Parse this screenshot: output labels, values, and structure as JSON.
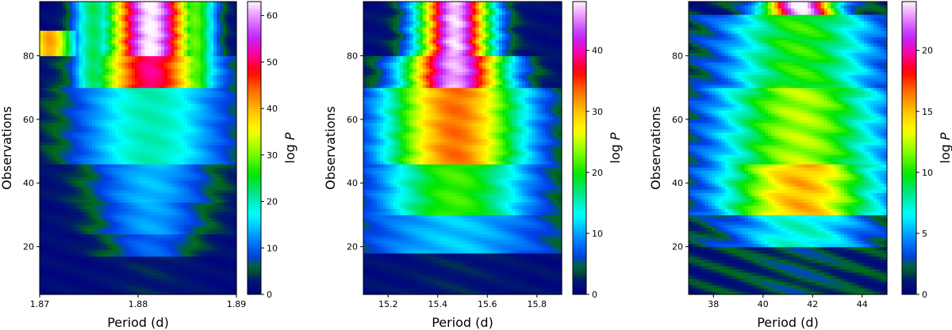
{
  "chart_data": [
    {
      "type": "heatmap",
      "xlabel": "Period (d)",
      "ylabel": "Observations",
      "colorbar_label": "log P",
      "xlim": [
        1.87,
        1.89
      ],
      "ylim": [
        5,
        97
      ],
      "xticks": [
        1.87,
        1.88,
        1.89
      ],
      "xtick_labels": [
        "1.87",
        "1.88",
        "1.89"
      ],
      "yticks": [
        20,
        40,
        60,
        80
      ],
      "ytick_labels": [
        "20",
        "40",
        "60",
        "80"
      ],
      "clim": [
        0,
        63
      ],
      "cticks": [
        0,
        10,
        20,
        30,
        40,
        50,
        60
      ],
      "ctick_labels": [
        "0",
        "10",
        "20",
        "30",
        "40",
        "50",
        "60"
      ],
      "colormap": "gist_ncar",
      "peak_period": 1.8813,
      "bands": [
        {
          "y": [
            5,
            17
          ],
          "peak": 2,
          "width": 0.003
        },
        {
          "y": [
            17,
            24
          ],
          "peak": 9,
          "width": 0.0035
        },
        {
          "y": [
            24,
            34
          ],
          "peak": 12,
          "width": 0.004
        },
        {
          "y": [
            34,
            46
          ],
          "peak": 13,
          "width": 0.0045
        },
        {
          "y": [
            46,
            70
          ],
          "peak": 19,
          "width": 0.0055
        },
        {
          "y": [
            70,
            80
          ],
          "peak": 50,
          "width": 0.004
        },
        {
          "y": [
            80,
            97
          ],
          "peak": 62,
          "width": 0.003
        }
      ],
      "extra_peaks": [
        {
          "x": 1.871,
          "y": [
            80,
            88
          ],
          "value": 40,
          "width": 0.0018
        },
        {
          "x": 1.8755,
          "y": [
            70,
            97
          ],
          "value": 22,
          "width": 0.0015
        },
        {
          "x": 1.8858,
          "y": [
            70,
            97
          ],
          "value": 28,
          "width": 0.0015
        }
      ]
    },
    {
      "type": "heatmap",
      "xlabel": "Period (d)",
      "ylabel": "Observations",
      "colorbar_label": "log P",
      "xlim": [
        15.1,
        15.9
      ],
      "ylim": [
        5,
        97
      ],
      "xticks": [
        15.2,
        15.4,
        15.6,
        15.8
      ],
      "xtick_labels": [
        "15.2",
        "15.4",
        "15.6",
        "15.8"
      ],
      "yticks": [
        20,
        40,
        60,
        80
      ],
      "ytick_labels": [
        "20",
        "40",
        "60",
        "80"
      ],
      "clim": [
        0,
        48
      ],
      "cticks": [
        0,
        10,
        20,
        30,
        40
      ],
      "ctick_labels": [
        "0",
        "10",
        "20",
        "30",
        "40"
      ],
      "colormap": "gist_ncar",
      "peak_period": 15.47,
      "bands": [
        {
          "y": [
            5,
            18
          ],
          "peak": 1,
          "width": 0.15
        },
        {
          "y": [
            18,
            30
          ],
          "peak": 10,
          "width": 0.3
        },
        {
          "y": [
            30,
            46
          ],
          "peak": 20,
          "width": 0.22
        },
        {
          "y": [
            46,
            70
          ],
          "peak": 32,
          "width": 0.2
        },
        {
          "y": [
            70,
            80
          ],
          "peak": 45,
          "width": 0.14
        },
        {
          "y": [
            80,
            97
          ],
          "peak": 46,
          "width": 0.1
        }
      ],
      "extra_peaks": []
    },
    {
      "type": "heatmap",
      "xlabel": "Period (d)",
      "ylabel": "Observations",
      "colorbar_label": "log P",
      "xlim": [
        37,
        45
      ],
      "ylim": [
        5,
        97
      ],
      "xticks": [
        38,
        40,
        42,
        44
      ],
      "xtick_labels": [
        "38",
        "40",
        "42",
        "44"
      ],
      "yticks": [
        20,
        40,
        60,
        80
      ],
      "ytick_labels": [
        "20",
        "40",
        "60",
        "80"
      ],
      "clim": [
        0,
        24
      ],
      "cticks": [
        0,
        5,
        10,
        15,
        20
      ],
      "ctick_labels": [
        "0",
        "5",
        "10",
        "15",
        "20"
      ],
      "colormap": "gist_ncar",
      "peak_period": 41.5,
      "bands": [
        {
          "y": [
            5,
            20
          ],
          "peak": 1,
          "width": 1.5
        },
        {
          "y": [
            20,
            30
          ],
          "peak": 6,
          "width": 2.0
        },
        {
          "y": [
            30,
            46
          ],
          "peak": 14,
          "width": 2.2
        },
        {
          "y": [
            46,
            70
          ],
          "peak": 11,
          "width": 2.3
        },
        {
          "y": [
            70,
            93
          ],
          "peak": 9,
          "width": 2.1
        },
        {
          "y": [
            93,
            97
          ],
          "peak": 23,
          "width": 1.0
        }
      ],
      "extra_peaks": []
    }
  ]
}
